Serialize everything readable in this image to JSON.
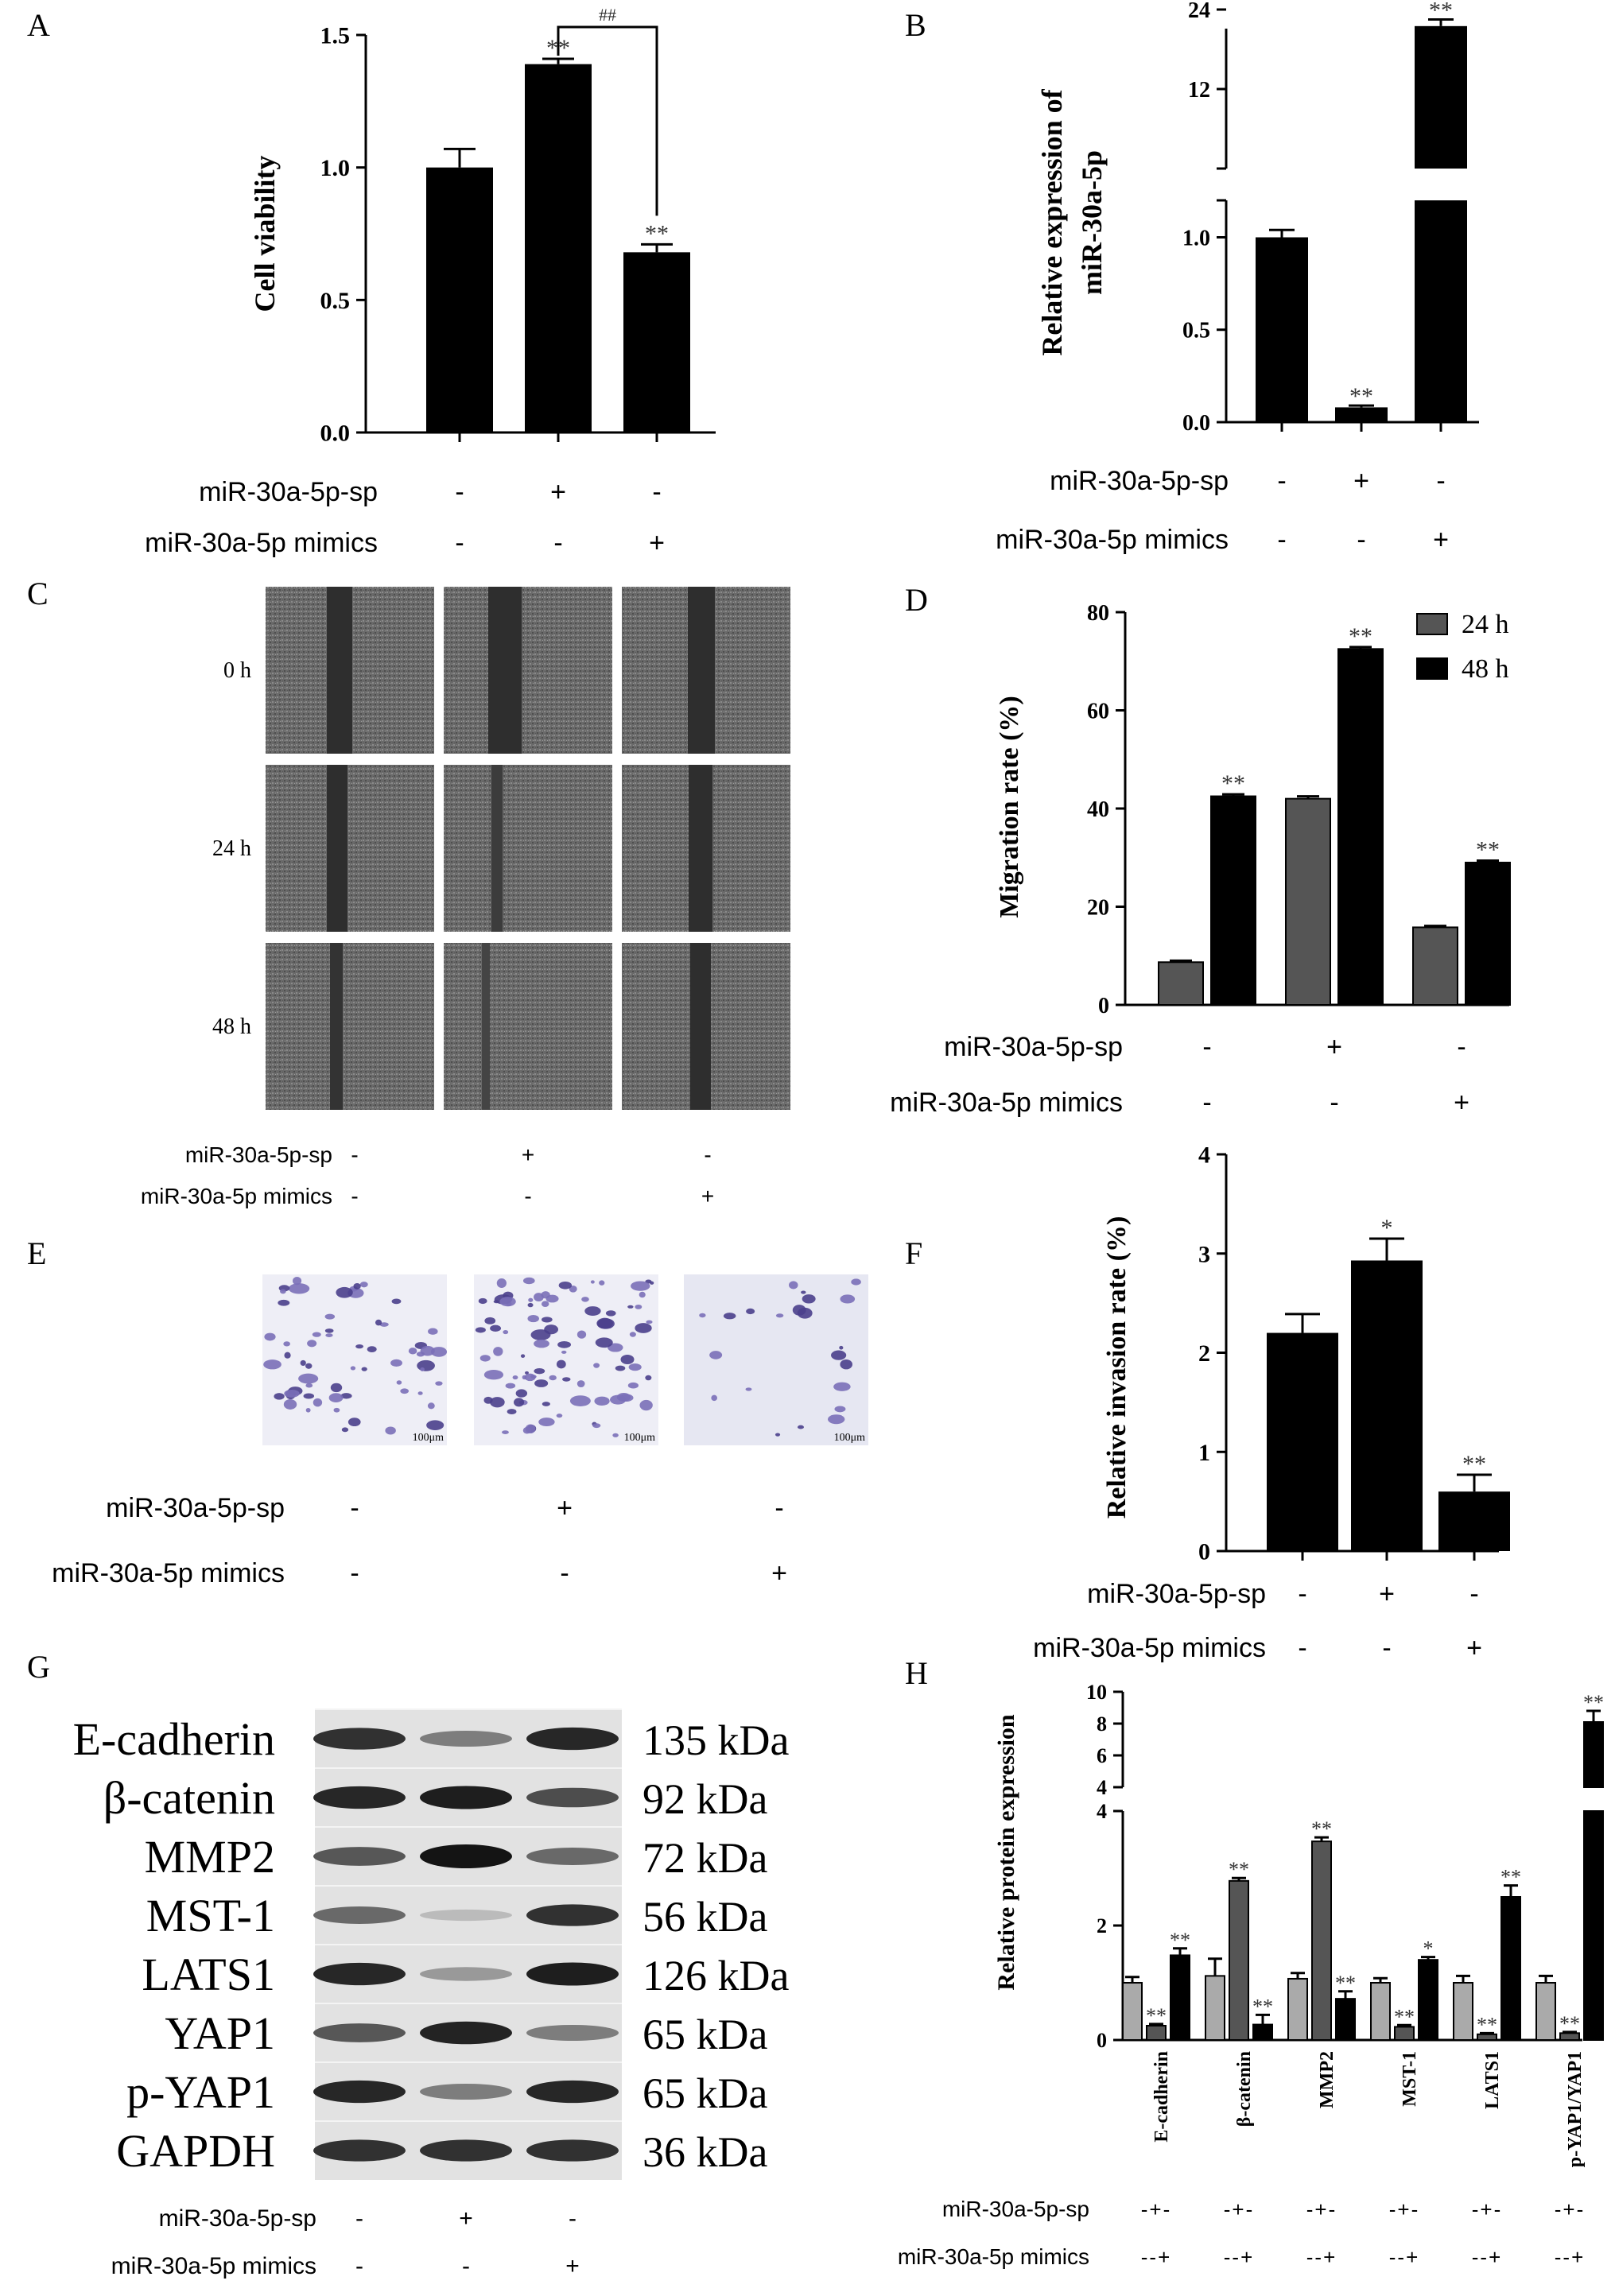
{
  "panels": {
    "A": "A",
    "B": "B",
    "C": "C",
    "D": "D",
    "E": "E",
    "F": "F",
    "G": "G",
    "H": "H"
  },
  "colors": {
    "black": "#000000",
    "dark_gray": "#555555",
    "light_gray": "#aaaaaa"
  },
  "chart_data": [
    {
      "id": "A",
      "type": "bar",
      "ylabel": "Cell viability",
      "ylim": [
        0,
        1.5
      ],
      "yticks": [
        "0.0",
        "0.5",
        "1.0",
        "1.5"
      ],
      "values": [
        1.0,
        1.39,
        0.68
      ],
      "errors": [
        0.07,
        0.02,
        0.03
      ],
      "bar_labels": [
        "",
        "**",
        "**"
      ],
      "bracket_label": "##",
      "conditions": [
        {
          "label": "miR-30a-5p-sp",
          "signs": [
            "-",
            "+",
            "-"
          ]
        },
        {
          "label": "miR-30a-5p mimics",
          "signs": [
            "-",
            "-",
            "+"
          ]
        }
      ]
    },
    {
      "id": "B",
      "type": "bar",
      "ylabel_line1": "Relative expression of",
      "ylabel_line2": "miR-30a-5p",
      "y_break": true,
      "lower_ylim": [
        0,
        1.2
      ],
      "upper_ylim": [
        0,
        24
      ],
      "yticks_lower": [
        "0.0",
        "0.5",
        "1.0"
      ],
      "yticks_upper": [
        "12",
        "24"
      ],
      "values": [
        1.0,
        0.08,
        21.5
      ],
      "errors": [
        0.04,
        0.01,
        1.0
      ],
      "bar_labels": [
        "",
        "**",
        "**"
      ],
      "conditions": [
        {
          "label": "miR-30a-5p-sp",
          "signs": [
            "-",
            "+",
            "-"
          ]
        },
        {
          "label": "miR-30a-5p mimics",
          "signs": [
            "-",
            "-",
            "+"
          ]
        }
      ]
    },
    {
      "id": "D",
      "type": "bar",
      "ylabel": "Migration rate (%)",
      "ylim": [
        0,
        80
      ],
      "yticks": [
        "0",
        "20",
        "40",
        "60",
        "80"
      ],
      "series": [
        {
          "name": "24 h",
          "color": "#555555",
          "values": [
            8.7,
            42.0,
            15.8
          ],
          "errors": [
            0.3,
            0.5,
            0.3
          ],
          "labels": [
            "",
            "",
            ""
          ]
        },
        {
          "name": "48 h",
          "color": "#000000",
          "values": [
            42.5,
            72.5,
            29.0
          ],
          "errors": [
            0.4,
            0.4,
            0.4
          ],
          "labels": [
            "**",
            "**",
            "**"
          ]
        }
      ],
      "legend_position": "top-right",
      "conditions": [
        {
          "label": "miR-30a-5p-sp",
          "signs": [
            "-",
            "+",
            "-"
          ]
        },
        {
          "label": "miR-30a-5p mimics",
          "signs": [
            "-",
            "-",
            "+"
          ]
        }
      ]
    },
    {
      "id": "F",
      "type": "bar",
      "ylabel": "Relative invasion rate (%)",
      "ylim": [
        0,
        4
      ],
      "yticks": [
        "0",
        "1",
        "2",
        "3",
        "4"
      ],
      "values": [
        2.2,
        2.93,
        0.6
      ],
      "errors": [
        0.19,
        0.22,
        0.17
      ],
      "bar_labels": [
        "",
        "*",
        "**"
      ],
      "conditions": [
        {
          "label": "miR-30a-5p-sp",
          "signs": [
            "-",
            "+",
            "-"
          ]
        },
        {
          "label": "miR-30a-5p mimics",
          "signs": [
            "-",
            "-",
            "+"
          ]
        }
      ]
    },
    {
      "id": "H",
      "type": "bar",
      "ylabel": "Relative protein expression",
      "y_break": true,
      "lower_ylim": [
        0,
        4
      ],
      "upper_ylim": [
        4,
        10
      ],
      "yticks_lower": [
        "0",
        "2",
        "4"
      ],
      "yticks_upper": [
        "4",
        "6",
        "8",
        "10"
      ],
      "categories": [
        "E-cadherin",
        "β-catenin",
        "MMP2",
        "MST-1",
        "LATS1",
        "p-YAP1/YAP1"
      ],
      "series": [
        {
          "name": "",
          "color": "#aaaaaa",
          "values": [
            1.0,
            1.12,
            1.07,
            1.0,
            1.0,
            1.0
          ],
          "errors": [
            0.1,
            0.3,
            0.1,
            0.08,
            0.12,
            0.12
          ],
          "labels": [
            "",
            "",
            "",
            "",
            "",
            ""
          ]
        },
        {
          "name": "",
          "color": "#555555",
          "values": [
            0.25,
            2.78,
            3.47,
            0.23,
            0.1,
            0.12
          ],
          "errors": [
            0.03,
            0.05,
            0.07,
            0.03,
            0.02,
            0.02
          ],
          "labels": [
            "**",
            "**",
            "**",
            "**",
            "**",
            "**"
          ]
        },
        {
          "name": "",
          "color": "#000000",
          "values": [
            1.48,
            0.27,
            0.72,
            1.4,
            2.5,
            8.1
          ],
          "errors": [
            0.12,
            0.17,
            0.13,
            0.05,
            0.2,
            0.7
          ],
          "labels": [
            "**",
            "**",
            "**",
            "*",
            "**",
            "**"
          ]
        }
      ],
      "conditions": [
        {
          "label": "miR-30a-5p-sp",
          "signs": "-+-"
        },
        {
          "label": "miR-30a-5p mimics",
          "signs": "--+"
        }
      ]
    }
  ],
  "panel_C": {
    "rows": [
      "0 h",
      "24 h",
      "48 h"
    ],
    "conditions": [
      {
        "label": "miR-30a-5p-sp",
        "signs": [
          "-",
          "+",
          "-"
        ]
      },
      {
        "label": "miR-30a-5p mimics",
        "signs": [
          "-",
          "-",
          "+"
        ]
      }
    ]
  },
  "panel_E": {
    "scale_labels": [
      "100μm",
      "100μm",
      "100μm"
    ],
    "conditions": [
      {
        "label": "miR-30a-5p-sp",
        "signs": [
          "-",
          "+",
          "-"
        ]
      },
      {
        "label": "miR-30a-5p mimics",
        "signs": [
          "-",
          "-",
          "+"
        ]
      }
    ]
  },
  "panel_G": {
    "proteins": [
      "E-cadherin",
      "β-catenin",
      "MMP2",
      "MST-1",
      "LATS1",
      "YAP1",
      "p-YAP1",
      "GAPDH"
    ],
    "sizes": [
      "135 kDa",
      "92 kDa",
      "72 kDa",
      "56 kDa",
      "126 kDa",
      "65 kDa",
      "65 kDa",
      "36 kDa"
    ],
    "band_intensity": [
      [
        0.85,
        0.45,
        0.9
      ],
      [
        0.9,
        0.95,
        0.7
      ],
      [
        0.65,
        1.0,
        0.55
      ],
      [
        0.55,
        0.12,
        0.85
      ],
      [
        0.9,
        0.3,
        0.95
      ],
      [
        0.65,
        0.92,
        0.45
      ],
      [
        0.9,
        0.45,
        0.9
      ],
      [
        0.85,
        0.85,
        0.85
      ]
    ],
    "conditions": [
      {
        "label": "miR-30a-5p-sp",
        "signs": [
          "-",
          "+",
          "-"
        ]
      },
      {
        "label": "miR-30a-5p mimics",
        "signs": [
          "-",
          "-",
          "+"
        ]
      }
    ]
  }
}
